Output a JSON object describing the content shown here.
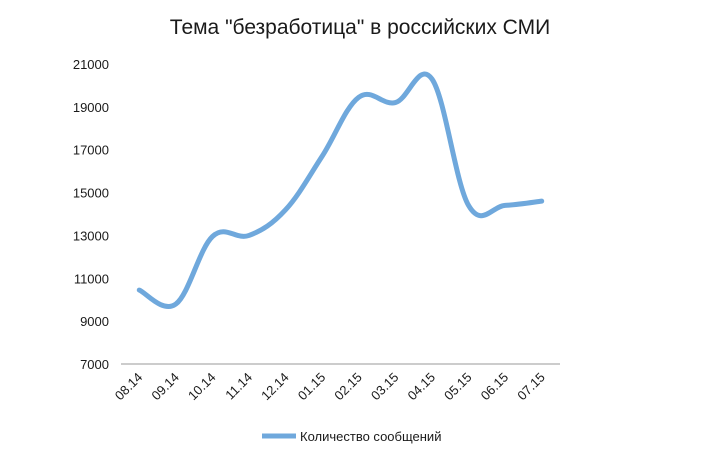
{
  "chart_data": {
    "type": "line",
    "title": "Тема \"безработица\" в российских СМИ",
    "categories": [
      "08.14",
      "09.14",
      "10.14",
      "11.14",
      "12.14",
      "01.15",
      "02.15",
      "03.15",
      "04.15",
      "05.15",
      "06.15",
      "07.15"
    ],
    "series": [
      {
        "name": "Количество сообщений",
        "values": [
          10450,
          9800,
          12950,
          13000,
          14200,
          16700,
          19450,
          19200,
          20300,
          14400,
          14400,
          14600
        ],
        "color": "#6fa8dc"
      }
    ],
    "ylim": [
      7000,
      21000
    ],
    "yticks": [
      7000,
      9000,
      11000,
      13000,
      15000,
      17000,
      19000,
      21000
    ],
    "grid": false,
    "legend": "bottom",
    "axis_color": "#9a9a9a",
    "line_color": "#6fa8dc"
  }
}
